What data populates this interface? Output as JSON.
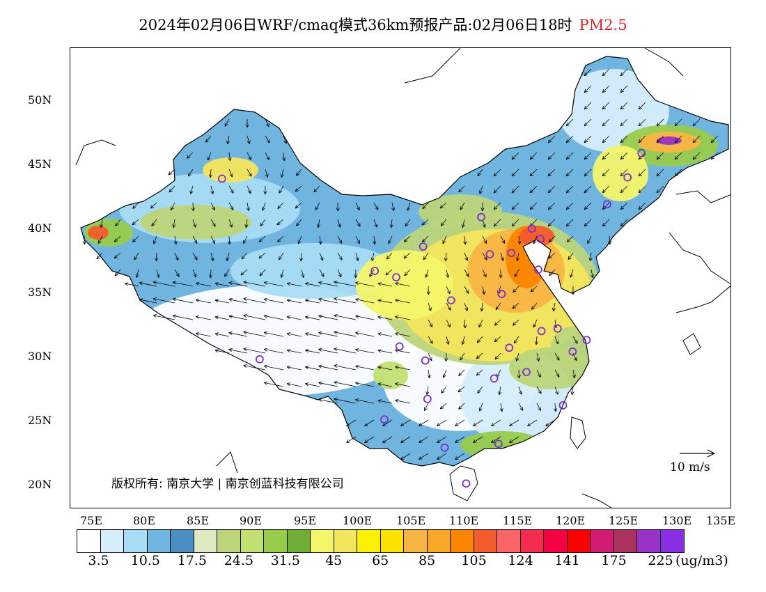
{
  "title": {
    "main": "2024年02月06日WRF/cmaq模式36km预报产品:02月06日18时",
    "variable": "PM2.5"
  },
  "map": {
    "lat_labels": [
      "50N",
      "45N",
      "40N",
      "35N",
      "30N",
      "25N",
      "20N"
    ],
    "lon_labels": [
      "75E",
      "80E",
      "85E",
      "90E",
      "95E",
      "100E",
      "105E",
      "110E",
      "115E",
      "120E",
      "125E",
      "130E",
      "135E"
    ],
    "copyright": "版权所有: 南京大学 | 南京创蓝科技有限公司",
    "scale_label": "10 m/s"
  },
  "colorbar": {
    "colors": [
      "#ffffff",
      "#d6eefb",
      "#a8dcf4",
      "#70b4e0",
      "#4b8ec4",
      "#dfe9c1",
      "#bcd57a",
      "#c2df73",
      "#97cc4b",
      "#6fad37",
      "#f4f66a",
      "#f3e55c",
      "#fbf001",
      "#fde200",
      "#f9b543",
      "#f9a928",
      "#fb8400",
      "#f35b2d",
      "#fc6566",
      "#f52b4f",
      "#f30142",
      "#fb0200",
      "#d11c74",
      "#aa3360",
      "#9a32c8",
      "#8a2ee3"
    ],
    "labels": [
      "3.5",
      "10.5",
      "17.5",
      "24.5",
      "31.5",
      "45",
      "65",
      "85",
      "105",
      "124",
      "141",
      "175",
      "225"
    ],
    "units": "(ug/m3)"
  },
  "colors": {
    "title_variable": "#e2232a",
    "station_marker": "#7b2fd0"
  },
  "stations": [
    {
      "name": "urumqi",
      "lon": 87.6,
      "lat": 43.8
    },
    {
      "name": "harbin",
      "lon": 126.6,
      "lat": 45.8
    },
    {
      "name": "changchun",
      "lon": 125.3,
      "lat": 43.9
    },
    {
      "name": "shenyang",
      "lon": 123.4,
      "lat": 41.8
    },
    {
      "name": "beijing",
      "lon": 116.4,
      "lat": 39.9
    },
    {
      "name": "tianjin",
      "lon": 117.2,
      "lat": 39.1
    },
    {
      "name": "shijiazhuang",
      "lon": 114.5,
      "lat": 38.0
    },
    {
      "name": "taiyuan",
      "lon": 112.5,
      "lat": 37.9
    },
    {
      "name": "hohhot",
      "lon": 111.7,
      "lat": 40.8
    },
    {
      "name": "jinan",
      "lon": 117.0,
      "lat": 36.7
    },
    {
      "name": "zhengzhou",
      "lon": 113.6,
      "lat": 34.8
    },
    {
      "name": "xian",
      "lon": 108.9,
      "lat": 34.3
    },
    {
      "name": "lanzhou",
      "lon": 103.8,
      "lat": 36.1
    },
    {
      "name": "xining",
      "lon": 101.8,
      "lat": 36.6
    },
    {
      "name": "yinchuan",
      "lon": 106.3,
      "lat": 38.5
    },
    {
      "name": "chengdu",
      "lon": 104.1,
      "lat": 30.7
    },
    {
      "name": "chongqing",
      "lon": 106.5,
      "lat": 29.6
    },
    {
      "name": "wuhan",
      "lon": 114.3,
      "lat": 30.6
    },
    {
      "name": "hefei",
      "lon": 117.3,
      "lat": 31.9
    },
    {
      "name": "nanjing",
      "lon": 118.8,
      "lat": 32.1
    },
    {
      "name": "shanghai",
      "lon": 121.5,
      "lat": 31.2
    },
    {
      "name": "hangzhou",
      "lon": 120.2,
      "lat": 30.3
    },
    {
      "name": "changsha",
      "lon": 112.9,
      "lat": 28.2
    },
    {
      "name": "nanchang",
      "lon": 115.9,
      "lat": 28.7
    },
    {
      "name": "fuzhou",
      "lon": 119.3,
      "lat": 26.1
    },
    {
      "name": "guiyang",
      "lon": 106.7,
      "lat": 26.6
    },
    {
      "name": "kunming",
      "lon": 102.7,
      "lat": 25.0
    },
    {
      "name": "nanning",
      "lon": 108.3,
      "lat": 22.8
    },
    {
      "name": "guangzhou",
      "lon": 113.3,
      "lat": 23.1
    },
    {
      "name": "haikou",
      "lon": 110.3,
      "lat": 20.0
    },
    {
      "name": "lhasa",
      "lon": 91.1,
      "lat": 29.7
    }
  ]
}
